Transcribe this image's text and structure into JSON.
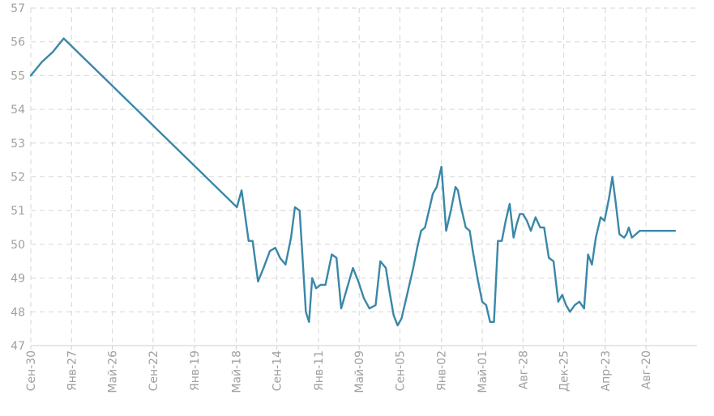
{
  "chart_data": {
    "type": "line",
    "title": "",
    "xlabel": "",
    "ylabel": "",
    "ylim": [
      47,
      57
    ],
    "xlim": [
      0,
      850
    ],
    "grid": true,
    "legend": "none",
    "colors": {
      "line": "#3a87a8",
      "grid": "#d6d6d6",
      "tick_text": "#a0a0a0",
      "axis": "#cfcfcf"
    },
    "yticks": [
      47,
      48,
      49,
      50,
      51,
      52,
      53,
      54,
      55,
      56,
      57
    ],
    "xticks": [
      {
        "label": "Сен-30",
        "pos": 0
      },
      {
        "label": "Янв-27",
        "pos": 52
      },
      {
        "label": "Май-26",
        "pos": 104
      },
      {
        "label": "Сен-22",
        "pos": 156
      },
      {
        "label": "Янв-19",
        "pos": 209
      },
      {
        "label": "Май-18",
        "pos": 262
      },
      {
        "label": "Сен-14",
        "pos": 314
      },
      {
        "label": "Янв-11",
        "pos": 367
      },
      {
        "label": "Май-09",
        "pos": 419
      },
      {
        "label": "Сен-05",
        "pos": 471
      },
      {
        "label": "Янв-02",
        "pos": 524
      },
      {
        "label": "Май-01",
        "pos": 576
      },
      {
        "label": "Авг-28",
        "pos": 628
      },
      {
        "label": "Дек-25",
        "pos": 680
      },
      {
        "label": "Апр-23",
        "pos": 733
      },
      {
        "label": "Авг-20",
        "pos": 785
      }
    ],
    "series": [
      {
        "name": "value",
        "x": [
          0,
          14,
          28,
          42,
          263,
          269,
          278,
          283,
          290,
          297,
          305,
          312,
          318,
          325,
          332,
          337,
          343,
          347,
          351,
          355,
          359,
          364,
          370,
          376,
          384,
          390,
          396,
          401,
          406,
          411,
          418,
          425,
          432,
          440,
          446,
          453,
          457,
          463,
          468,
          473,
          478,
          483,
          488,
          493,
          498,
          503,
          508,
          513,
          518,
          524,
          530,
          536,
          542,
          545,
          549,
          555,
          560,
          564,
          570,
          576,
          581,
          586,
          591,
          596,
          601,
          606,
          611,
          616,
          620,
          624,
          628,
          633,
          638,
          644,
          650,
          655,
          661,
          667,
          673,
          678,
          683,
          688,
          694,
          700,
          706,
          711,
          716,
          721,
          727,
          732,
          738,
          742,
          746,
          751,
          757,
          760,
          763,
          767,
          772,
          777,
          782,
          788,
          795,
          801,
          806,
          812,
          817,
          822
        ],
        "y": [
          55.0,
          55.4,
          55.7,
          56.1,
          51.1,
          51.6,
          50.1,
          50.1,
          48.9,
          49.3,
          49.8,
          49.9,
          49.6,
          49.4,
          50.2,
          51.1,
          51.0,
          49.5,
          48.0,
          47.7,
          49.0,
          48.7,
          48.8,
          48.8,
          49.7,
          49.6,
          48.1,
          48.5,
          48.9,
          49.3,
          48.9,
          48.4,
          48.1,
          48.2,
          49.5,
          49.3,
          48.7,
          47.9,
          47.6,
          47.8,
          48.3,
          48.8,
          49.3,
          49.9,
          50.4,
          50.5,
          51.0,
          51.5,
          51.7,
          52.3,
          50.4,
          51.0,
          51.7,
          51.6,
          51.1,
          50.5,
          50.4,
          49.8,
          49.0,
          48.3,
          48.2,
          47.7,
          47.7,
          50.1,
          50.1,
          50.7,
          51.2,
          50.2,
          50.6,
          50.9,
          50.9,
          50.7,
          50.4,
          50.8,
          50.5,
          50.5,
          49.6,
          49.5,
          48.3,
          48.5,
          48.2,
          48.0,
          48.2,
          48.3,
          48.1,
          49.7,
          49.4,
          50.2,
          50.8,
          50.7,
          51.4,
          52.0,
          51.3,
          50.3,
          50.2,
          50.3,
          50.5,
          50.2,
          50.3,
          50.4,
          50.4,
          50.4,
          50.4,
          50.4,
          50.4,
          50.4,
          50.4,
          50.4
        ]
      }
    ]
  }
}
